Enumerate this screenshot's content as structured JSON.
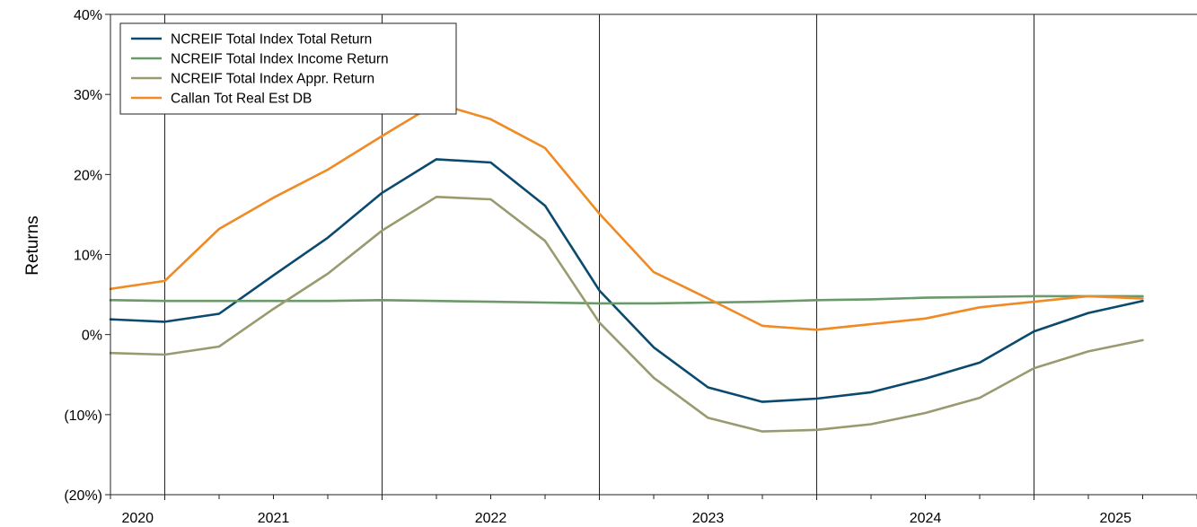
{
  "chart_data": {
    "type": "line",
    "title": "",
    "xlabel": "",
    "ylabel": "Returns",
    "ylim": [
      -20,
      40
    ],
    "y_ticks": [
      {
        "value": 40,
        "label": "40%",
        "color": "#000000"
      },
      {
        "value": 30,
        "label": "30%",
        "color": "#000000"
      },
      {
        "value": 20,
        "label": "20%",
        "color": "#000000"
      },
      {
        "value": 10,
        "label": "10%",
        "color": "#000000"
      },
      {
        "value": 0,
        "label": "0%",
        "color": "#000000"
      },
      {
        "value": -10,
        "label": "(10%)",
        "color": "#d0021b"
      },
      {
        "value": -20,
        "label": "(20%)",
        "color": "#d0021b"
      }
    ],
    "x_year_labels": [
      "2020",
      "2021",
      "2022",
      "2023",
      "2024",
      "2025"
    ],
    "x_year_label_quarter_index": [
      0.5,
      3,
      7,
      11,
      15,
      18.5
    ],
    "year_divider_quarter_index": [
      1,
      5,
      9,
      13,
      17
    ],
    "quarter_count": 20,
    "grid": "year dividers only",
    "legend_position": "top-left",
    "series": [
      {
        "name": "NCREIF Total Index Total Return",
        "color": "#0b4a6f",
        "values": [
          1.9,
          1.6,
          2.6,
          7.4,
          12.1,
          17.7,
          21.9,
          21.5,
          16.1,
          5.5,
          -1.6,
          -6.6,
          -8.4,
          -8.0,
          -7.2,
          -5.5,
          -3.5,
          0.4,
          2.7,
          4.2
        ]
      },
      {
        "name": "NCREIF Total Index Income Return",
        "color": "#6a9a6a",
        "values": [
          4.3,
          4.2,
          4.2,
          4.2,
          4.2,
          4.3,
          4.2,
          4.1,
          4.0,
          3.9,
          3.9,
          4.0,
          4.1,
          4.3,
          4.4,
          4.6,
          4.7,
          4.8,
          4.8,
          4.8
        ]
      },
      {
        "name": "NCREIF Total Index Appr. Return",
        "color": "#9a9a70",
        "values": [
          -2.3,
          -2.5,
          -1.5,
          3.2,
          7.6,
          13.0,
          17.2,
          16.9,
          11.7,
          1.5,
          -5.4,
          -10.4,
          -12.1,
          -11.9,
          -11.2,
          -9.8,
          -7.9,
          -4.2,
          -2.1,
          -0.7
        ]
      },
      {
        "name": "Callan Tot Real Est DB",
        "color": "#f08a24",
        "values": [
          5.7,
          6.7,
          13.2,
          17.1,
          20.6,
          24.8,
          28.9,
          26.9,
          23.3,
          15.1,
          7.8,
          4.5,
          1.1,
          0.6,
          1.3,
          2.0,
          3.4,
          4.1,
          4.8,
          4.5
        ]
      }
    ]
  }
}
